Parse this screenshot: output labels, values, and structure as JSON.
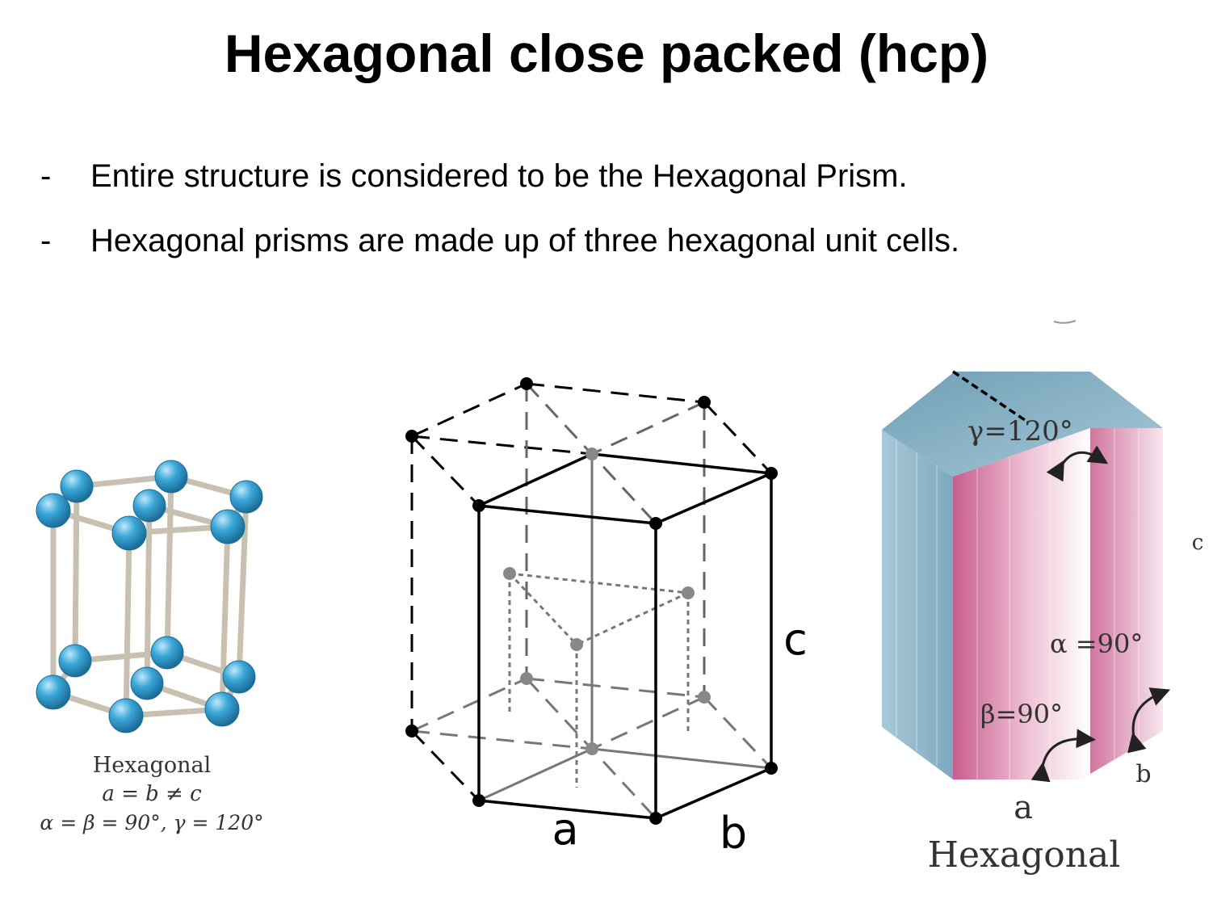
{
  "slide": {
    "title": "Hexagonal close packed (hcp)",
    "bullets": [
      {
        "marker": "-",
        "text": "Entire structure is considered to be the Hexagonal Prism."
      },
      {
        "marker": "-",
        "text": "Hexagonal prisms are made up of three hexagonal unit cells."
      }
    ]
  },
  "figure_left": {
    "caption_name": "Hexagonal",
    "caption_relation1": "a = b ≠ c",
    "caption_relation2": "α = β = 90°, γ = 120°",
    "atom_color": "#3aa7d8",
    "rod_color": "#c8c0b0"
  },
  "figure_center": {
    "label_a": "a",
    "label_b": "b",
    "label_c": "c"
  },
  "figure_right": {
    "gamma_label": "γ=120°",
    "alpha_label": "α =90°",
    "beta_label": "β=90°",
    "label_a": "a",
    "label_b": "b",
    "label_c": "c",
    "caption": "Hexagonal",
    "blue_color": "#8ab6cb",
    "pink_color": "#c85d8e"
  }
}
